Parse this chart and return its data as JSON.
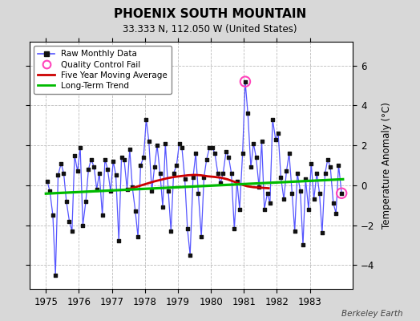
{
  "title": "PHOENIX SOUTH MOUNTAIN",
  "subtitle": "33.333 N, 112.050 W (United States)",
  "ylabel": "Temperature Anomaly (°C)",
  "attribution": "Berkeley Earth",
  "background_color": "#d8d8d8",
  "plot_bg_color": "#ffffff",
  "grid_color": "#bbbbbb",
  "ylim": [
    -5.2,
    7.2
  ],
  "yticks": [
    -4,
    -2,
    0,
    2,
    4,
    6
  ],
  "xlim": [
    1974.5,
    1984.3
  ],
  "xticks": [
    1975,
    1976,
    1977,
    1978,
    1979,
    1980,
    1981,
    1982,
    1983
  ],
  "raw_data": {
    "times": [
      1975.04,
      1975.12,
      1975.21,
      1975.29,
      1975.37,
      1975.46,
      1975.54,
      1975.62,
      1975.71,
      1975.79,
      1975.87,
      1975.96,
      1976.04,
      1976.12,
      1976.21,
      1976.29,
      1976.37,
      1976.46,
      1976.54,
      1976.62,
      1976.71,
      1976.79,
      1976.87,
      1976.96,
      1977.04,
      1977.12,
      1977.21,
      1977.29,
      1977.37,
      1977.46,
      1977.54,
      1977.62,
      1977.71,
      1977.79,
      1977.87,
      1977.96,
      1978.04,
      1978.12,
      1978.21,
      1978.29,
      1978.37,
      1978.46,
      1978.54,
      1978.62,
      1978.71,
      1978.79,
      1978.87,
      1978.96,
      1979.04,
      1979.12,
      1979.21,
      1979.29,
      1979.37,
      1979.46,
      1979.54,
      1979.62,
      1979.71,
      1979.79,
      1979.87,
      1979.96,
      1980.04,
      1980.12,
      1980.21,
      1980.29,
      1980.37,
      1980.46,
      1980.54,
      1980.62,
      1980.71,
      1980.79,
      1980.87,
      1980.96,
      1981.04,
      1981.12,
      1981.21,
      1981.29,
      1981.37,
      1981.46,
      1981.54,
      1981.62,
      1981.71,
      1981.79,
      1981.87,
      1981.96,
      1982.04,
      1982.12,
      1982.21,
      1982.29,
      1982.37,
      1982.46,
      1982.54,
      1982.62,
      1982.71,
      1982.79,
      1982.87,
      1982.96,
      1983.04,
      1983.12,
      1983.21,
      1983.29,
      1983.37,
      1983.46,
      1983.54,
      1983.62,
      1983.71,
      1983.79,
      1983.87,
      1983.96
    ],
    "values": [
      0.2,
      -0.3,
      -1.5,
      -4.5,
      0.5,
      1.1,
      0.6,
      -0.8,
      -1.8,
      -2.3,
      1.5,
      0.7,
      1.9,
      -2.0,
      -0.8,
      0.8,
      1.3,
      0.9,
      -0.2,
      0.6,
      -1.5,
      1.3,
      0.8,
      -0.3,
      1.2,
      0.5,
      -2.8,
      1.4,
      1.3,
      -0.2,
      1.8,
      -0.1,
      -1.3,
      -2.6,
      1.0,
      1.4,
      3.3,
      2.2,
      -0.3,
      0.9,
      2.0,
      0.6,
      -1.1,
      2.1,
      -0.3,
      -2.3,
      0.6,
      1.0,
      2.1,
      1.9,
      0.3,
      -2.2,
      -3.5,
      0.4,
      1.6,
      -0.4,
      -2.6,
      0.4,
      1.3,
      1.9,
      1.9,
      1.6,
      0.6,
      0.1,
      0.6,
      1.7,
      1.4,
      0.6,
      -2.2,
      0.2,
      -1.2,
      1.6,
      5.2,
      3.6,
      0.9,
      2.1,
      1.4,
      -0.1,
      2.2,
      -1.2,
      -0.4,
      -0.9,
      3.3,
      2.3,
      2.6,
      0.4,
      -0.7,
      0.7,
      1.6,
      -0.4,
      -2.3,
      0.6,
      -0.3,
      -3.0,
      0.3,
      -1.2,
      1.1,
      -0.7,
      0.6,
      -0.4,
      -2.4,
      0.6,
      1.3,
      0.9,
      -0.9,
      -1.4,
      1.0,
      -0.4
    ],
    "qc_fail_indices": [
      72,
      107
    ]
  },
  "moving_avg": {
    "times": [
      1977.5,
      1977.7,
      1977.9,
      1978.1,
      1978.3,
      1978.5,
      1978.7,
      1978.9,
      1979.1,
      1979.3,
      1979.5,
      1979.7,
      1979.9,
      1980.1,
      1980.3,
      1980.5,
      1980.7,
      1980.9,
      1981.1,
      1981.3,
      1981.5,
      1981.75
    ],
    "values": [
      -0.2,
      -0.1,
      0.0,
      0.1,
      0.2,
      0.28,
      0.36,
      0.42,
      0.46,
      0.5,
      0.52,
      0.5,
      0.45,
      0.42,
      0.38,
      0.3,
      0.18,
      0.05,
      -0.05,
      -0.1,
      -0.12,
      -0.15
    ]
  },
  "trend": {
    "times": [
      1975.0,
      1984.0
    ],
    "values": [
      -0.42,
      0.3
    ]
  },
  "line_color": "#5555ff",
  "marker_color": "#111111",
  "qc_color": "#ff44bb",
  "moving_avg_color": "#cc0000",
  "trend_color": "#00bb00",
  "legend_labels": [
    "Raw Monthly Data",
    "Quality Control Fail",
    "Five Year Moving Average",
    "Long-Term Trend"
  ]
}
